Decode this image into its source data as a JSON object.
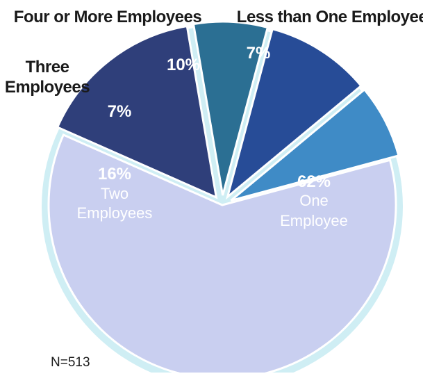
{
  "chart_data": {
    "type": "pie",
    "categories": [
      "One Employee",
      "Two Employees",
      "Three Employees",
      "Four or More Employees",
      "Less than One Employee"
    ],
    "values": [
      62,
      16,
      7,
      10,
      7
    ],
    "value_labels": [
      "62%",
      "16%",
      "7%",
      "10%",
      "7%"
    ],
    "colors": [
      "#c9cff0",
      "#2f3f7a",
      "#2b6f93",
      "#274c97",
      "#3f8bc6"
    ],
    "exploded": [
      false,
      true,
      true,
      true,
      true
    ],
    "background_ring_color": "#cfeef4",
    "note": "N=513",
    "title": ""
  }
}
